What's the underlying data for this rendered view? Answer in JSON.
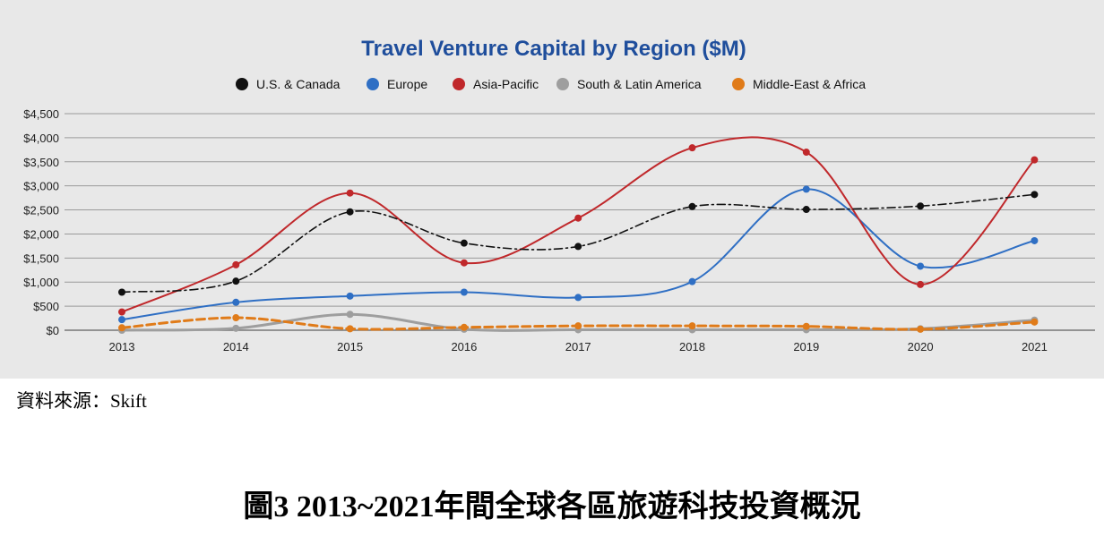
{
  "chart_data": {
    "type": "line",
    "title": "Travel Venture Capital by Region ($M)",
    "xlabel": "",
    "ylabel": "",
    "categories": [
      "2013",
      "2014",
      "2015",
      "2016",
      "2017",
      "2018",
      "2019",
      "2020",
      "2021"
    ],
    "ylim": [
      0,
      4500
    ],
    "yticks": [
      0,
      500,
      1000,
      1500,
      2000,
      2500,
      3000,
      3500,
      4000,
      4500
    ],
    "ytick_labels": [
      "$0",
      "$500",
      "$1,000",
      "$1,500",
      "$2,000",
      "$2,500",
      "$3,000",
      "$3,500",
      "$4,000",
      "$4,500"
    ],
    "grid": "horizontal",
    "legend_position": "top",
    "series": [
      {
        "name": "U.S. & Canada",
        "color": "#111111",
        "line_style": "dash-dot",
        "values": [
          790,
          1020,
          2460,
          1810,
          1740,
          2570,
          2510,
          2580,
          2820
        ]
      },
      {
        "name": "Europe",
        "color": "#2f6fc4",
        "line_style": "solid",
        "values": [
          220,
          580,
          710,
          790,
          680,
          1010,
          2930,
          1330,
          1860
        ]
      },
      {
        "name": "Asia-Pacific",
        "color": "#c0282b",
        "line_style": "solid",
        "values": [
          380,
          1360,
          2850,
          1400,
          2330,
          3790,
          3700,
          950,
          3540
        ]
      },
      {
        "name": "South & Latin America",
        "color": "#9e9e9e",
        "line_style": "solid",
        "values": [
          0,
          40,
          330,
          20,
          10,
          10,
          10,
          30,
          210
        ]
      },
      {
        "name": "Middle-East & Africa",
        "color": "#e07b19",
        "line_style": "dashed",
        "values": [
          50,
          260,
          30,
          60,
          90,
          90,
          80,
          20,
          170
        ]
      }
    ]
  },
  "source_note": "資料來源：Skift",
  "figure_caption": "圖3 2013~2021年間全球各區旅遊科技投資概況",
  "colors": {
    "title": "#1f4e9c",
    "panel_background": "#e8e8e8",
    "gridline": "#9a9a9a"
  }
}
